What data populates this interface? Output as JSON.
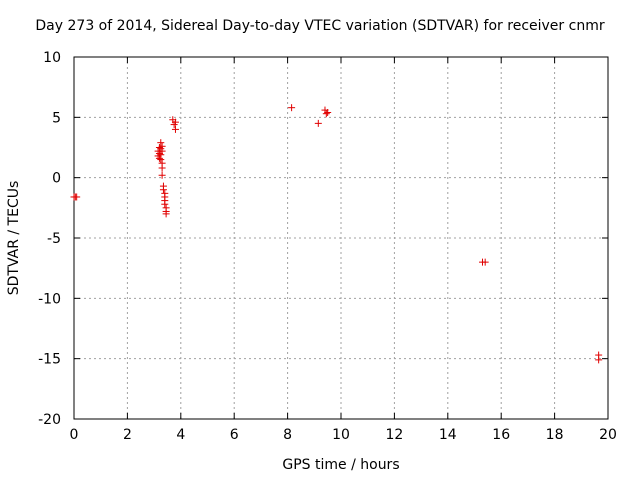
{
  "chart_data": {
    "type": "scatter",
    "title": "Day 273 of 2014, Sidereal Day-to-day VTEC variation (SDTVAR) for receiver cnmr",
    "xlabel": "GPS time / hours",
    "ylabel": "SDTVAR / TECUs",
    "xlim": [
      0,
      20
    ],
    "ylim": [
      -20,
      10
    ],
    "xticks": [
      0,
      2,
      4,
      6,
      8,
      10,
      12,
      14,
      16,
      18,
      20
    ],
    "yticks": [
      10,
      5,
      0,
      -5,
      -10,
      -15,
      -20
    ],
    "grid": true,
    "marker": "+",
    "color": "#e00000",
    "series": [
      {
        "name": "SDTVAR",
        "points": [
          [
            0.0,
            -1.6
          ],
          [
            0.05,
            -1.6
          ],
          [
            0.1,
            -1.6
          ],
          [
            3.15,
            2.2
          ],
          [
            3.15,
            1.8
          ],
          [
            3.2,
            2.5
          ],
          [
            3.2,
            1.6
          ],
          [
            3.2,
            2.0
          ],
          [
            3.25,
            2.9
          ],
          [
            3.25,
            2.4
          ],
          [
            3.25,
            1.9
          ],
          [
            3.25,
            1.5
          ],
          [
            3.3,
            2.6
          ],
          [
            3.3,
            2.2
          ],
          [
            3.3,
            1.2
          ],
          [
            3.3,
            0.8
          ],
          [
            3.3,
            0.2
          ],
          [
            3.35,
            -0.7
          ],
          [
            3.35,
            -1.0
          ],
          [
            3.4,
            -1.3
          ],
          [
            3.4,
            -1.6
          ],
          [
            3.4,
            -1.9
          ],
          [
            3.4,
            -2.2
          ],
          [
            3.45,
            -2.5
          ],
          [
            3.45,
            -2.8
          ],
          [
            3.45,
            -3.0
          ],
          [
            3.7,
            4.8
          ],
          [
            3.75,
            4.4
          ],
          [
            3.8,
            4.6
          ],
          [
            3.8,
            4.0
          ],
          [
            8.15,
            5.8
          ],
          [
            9.15,
            4.5
          ],
          [
            9.4,
            5.6
          ],
          [
            9.45,
            5.3
          ],
          [
            9.5,
            5.4
          ],
          [
            15.3,
            -7.0
          ],
          [
            15.4,
            -7.0
          ],
          [
            19.65,
            -14.7
          ],
          [
            19.65,
            -15.1
          ]
        ]
      }
    ]
  }
}
